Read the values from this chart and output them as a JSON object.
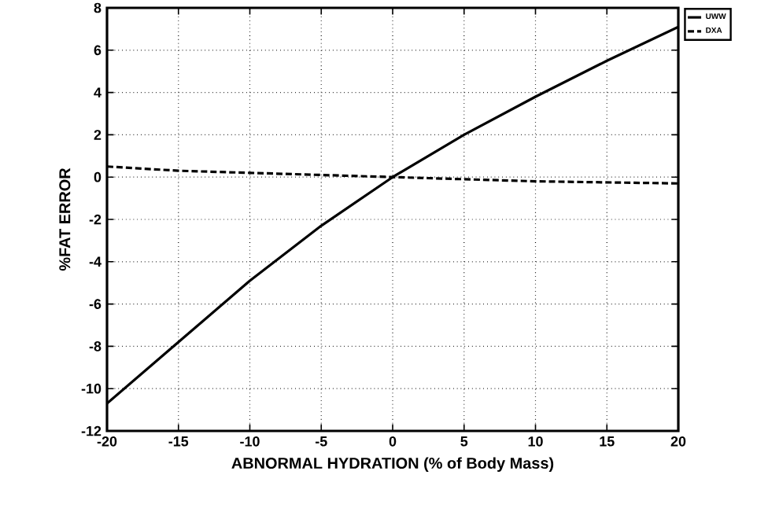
{
  "chart_data": {
    "type": "line",
    "xlabel": "ABNORMAL HYDRATION  (% of Body Mass)",
    "ylabel": "%FAT ERROR",
    "x": [
      -20,
      -15,
      -10,
      -5,
      0,
      5,
      10,
      15,
      20
    ],
    "series": [
      {
        "name": "UWW",
        "color": "#000000",
        "line_style": "solid",
        "values": [
          -10.7,
          -7.8,
          -4.9,
          -2.3,
          0,
          2.0,
          3.8,
          5.5,
          7.1
        ]
      },
      {
        "name": "DXA",
        "color": "#000000",
        "line_style": "dashed",
        "values": [
          0.5,
          0.3,
          0.2,
          0.1,
          0,
          -0.1,
          -0.2,
          -0.25,
          -0.3
        ]
      }
    ],
    "xlim": [
      -20,
      20
    ],
    "xticks": [
      -20,
      -15,
      -10,
      -5,
      0,
      5,
      10,
      15,
      20
    ],
    "ylim": [
      -12,
      8
    ],
    "yticks": [
      -12,
      -10,
      -8,
      -6,
      -4,
      -2,
      0,
      2,
      4,
      6,
      8
    ],
    "grid": true,
    "legend": "top right",
    "marker": "none"
  }
}
